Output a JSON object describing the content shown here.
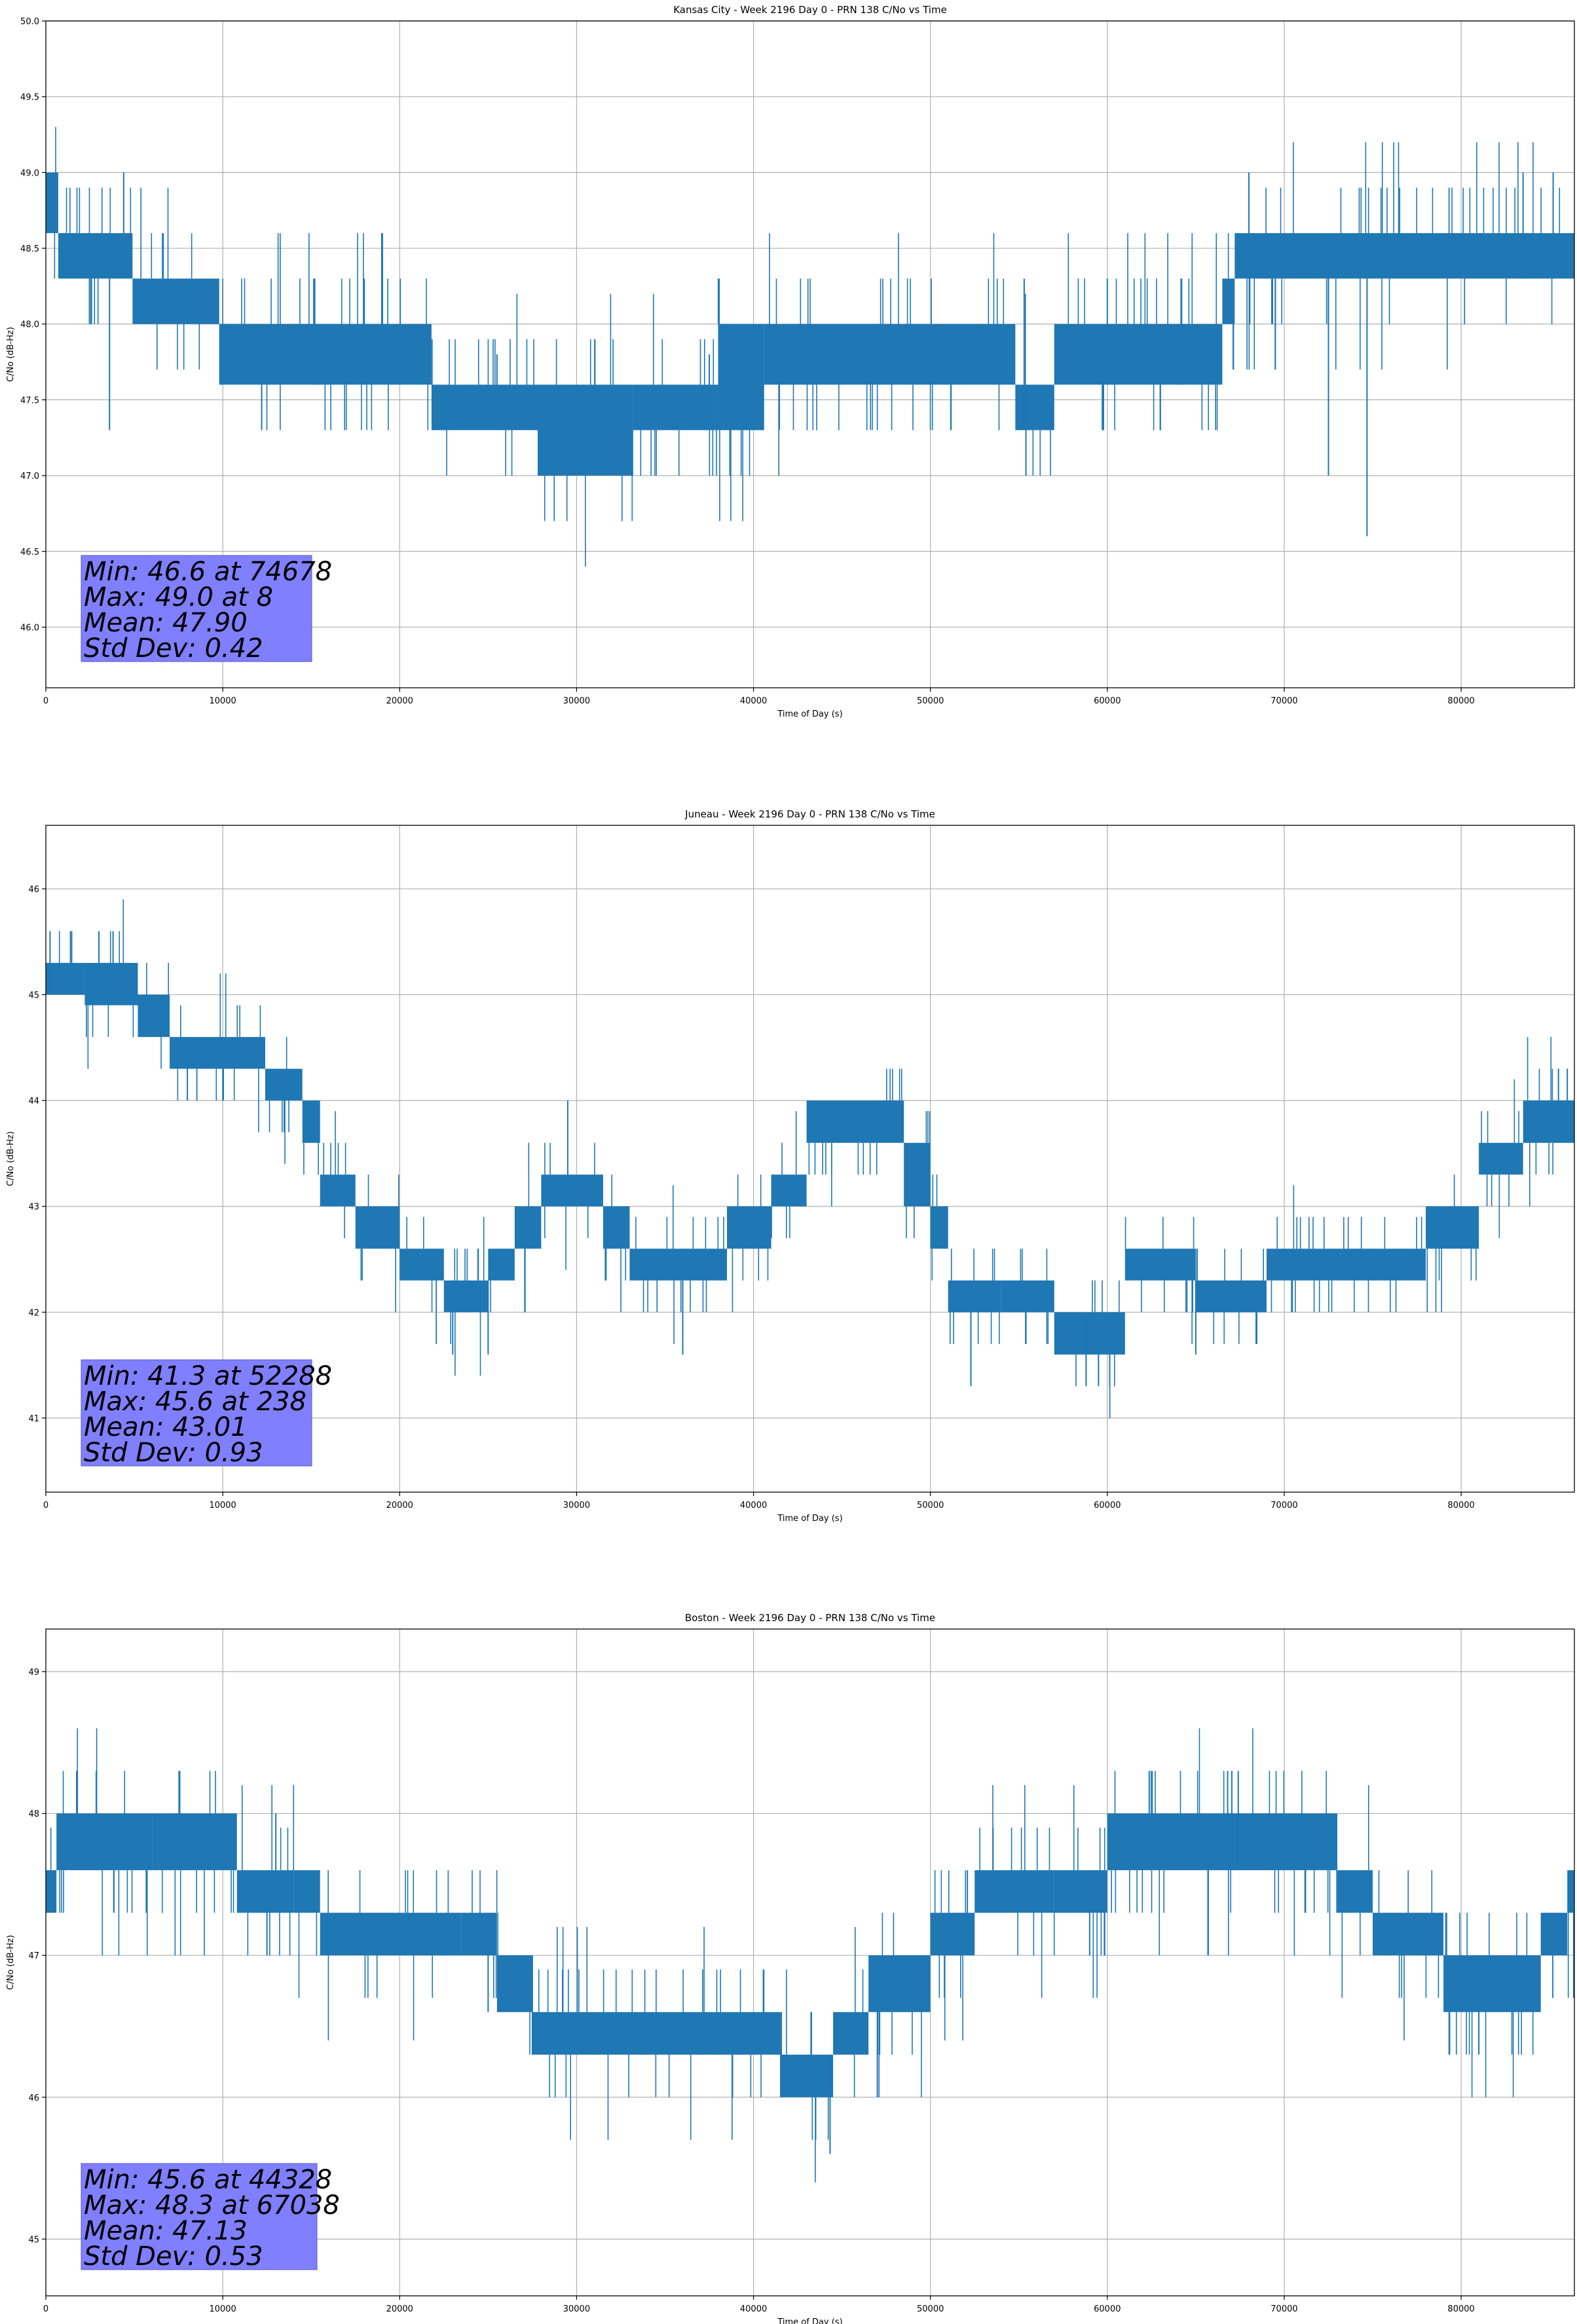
{
  "accent_color": "#1f77b4",
  "stats_box_color": "#7f7fff",
  "chart_data": [
    {
      "type": "line",
      "title": "Kansas City - Week 2196 Day 0 - PRN 138 C/No vs Time",
      "xlabel": "Time of Day (s)",
      "ylabel": "C/No (dB-Hz)",
      "xlim": [
        0,
        86400
      ],
      "ylim": [
        45.6,
        50.0
      ],
      "xticks": [
        0,
        10000,
        20000,
        30000,
        40000,
        50000,
        60000,
        70000,
        80000
      ],
      "yticks": [
        46.0,
        46.5,
        47.0,
        47.5,
        48.0,
        48.5,
        49.0,
        49.5,
        50.0
      ],
      "ytick_labels": [
        "46.0",
        "46.5",
        "47.0",
        "47.5",
        "48.0",
        "48.5",
        "49.0",
        "49.5",
        "50.0"
      ],
      "grid": true,
      "series": [
        {
          "bands": [
            {
              "x0": 0,
              "x1": 700,
              "lo": 48.6,
              "hi": 49.0
            },
            {
              "x0": 700,
              "x1": 4900,
              "lo": 48.3,
              "hi": 48.6
            },
            {
              "x0": 4900,
              "x1": 9800,
              "lo": 48.0,
              "hi": 48.3
            },
            {
              "x0": 9800,
              "x1": 21800,
              "lo": 47.6,
              "hi": 48.0
            },
            {
              "x0": 21800,
              "x1": 27800,
              "lo": 47.3,
              "hi": 47.6
            },
            {
              "x0": 27800,
              "x1": 33200,
              "lo": 47.0,
              "hi": 47.6
            },
            {
              "x0": 33200,
              "x1": 38000,
              "lo": 47.3,
              "hi": 47.6
            },
            {
              "x0": 38000,
              "x1": 40600,
              "lo": 47.3,
              "hi": 48.0
            },
            {
              "x0": 40600,
              "x1": 54800,
              "lo": 47.6,
              "hi": 48.0
            },
            {
              "x0": 54800,
              "x1": 57000,
              "lo": 47.3,
              "hi": 47.6
            },
            {
              "x0": 57000,
              "x1": 66500,
              "lo": 47.6,
              "hi": 48.0
            },
            {
              "x0": 66500,
              "x1": 67200,
              "lo": 48.0,
              "hi": 48.3
            },
            {
              "x0": 67200,
              "x1": 86400,
              "lo": 48.3,
              "hi": 48.6
            }
          ],
          "spikes": [
            {
              "x": 74678,
              "lo": 46.6,
              "hi": 48.3
            },
            {
              "x": 72500,
              "lo": 47.0,
              "hi": 48.3
            },
            {
              "x": 3600,
              "lo": 47.3,
              "hi": 48.3
            },
            {
              "x": 55400,
              "lo": 47.0,
              "hi": 47.6
            },
            {
              "x": 8,
              "lo": 48.6,
              "hi": 49.0
            },
            {
              "x": 4400,
              "lo": 48.6,
              "hi": 49.0
            },
            {
              "x": 68000,
              "lo": 48.3,
              "hi": 49.0
            },
            {
              "x": 83500,
              "lo": 48.3,
              "hi": 49.0
            },
            {
              "x": 85200,
              "lo": 48.3,
              "hi": 49.0
            },
            {
              "x": 15200,
              "lo": 47.6,
              "hi": 48.3
            },
            {
              "x": 18000,
              "lo": 47.6,
              "hi": 48.3
            },
            {
              "x": 55300,
              "lo": 47.6,
              "hi": 48.3
            },
            {
              "x": 64200,
              "lo": 47.6,
              "hi": 48.3
            },
            {
              "x": 60000,
              "lo": 47.6,
              "hi": 48.3
            },
            {
              "x": 25500,
              "lo": 47.3,
              "hi": 47.8
            },
            {
              "x": 37500,
              "lo": 47.3,
              "hi": 47.8
            },
            {
              "x": 63000,
              "lo": 47.3,
              "hi": 47.6
            },
            {
              "x": 12200,
              "lo": 47.3,
              "hi": 47.6
            }
          ]
        }
      ],
      "stats": [
        "Min: 46.6 at 74678",
        "Max: 49.0 at 8",
        "Mean: 47.90",
        "Std Dev: 0.42"
      ]
    },
    {
      "type": "line",
      "title": "Juneau - Week 2196 Day 0 - PRN 138 C/No vs Time",
      "xlabel": "Time of Day (s)",
      "ylabel": "C/No (dB-Hz)",
      "xlim": [
        0,
        86400
      ],
      "ylim": [
        40.3,
        46.6
      ],
      "xticks": [
        0,
        10000,
        20000,
        30000,
        40000,
        50000,
        60000,
        70000,
        80000
      ],
      "yticks": [
        41,
        42,
        43,
        44,
        45,
        46
      ],
      "ytick_labels": [
        "41",
        "42",
        "43",
        "44",
        "45",
        "46"
      ],
      "grid": true,
      "series": [
        {
          "bands": [
            {
              "x0": 0,
              "x1": 2200,
              "lo": 45.0,
              "hi": 45.3
            },
            {
              "x0": 2200,
              "x1": 5200,
              "lo": 44.9,
              "hi": 45.3
            },
            {
              "x0": 5200,
              "x1": 7000,
              "lo": 44.6,
              "hi": 45.0
            },
            {
              "x0": 7000,
              "x1": 12400,
              "lo": 44.3,
              "hi": 44.6
            },
            {
              "x0": 12400,
              "x1": 14500,
              "lo": 44.0,
              "hi": 44.3
            },
            {
              "x0": 14500,
              "x1": 15500,
              "lo": 43.6,
              "hi": 44.0
            },
            {
              "x0": 15500,
              "x1": 17500,
              "lo": 43.0,
              "hi": 43.3
            },
            {
              "x0": 17500,
              "x1": 20000,
              "lo": 42.6,
              "hi": 43.0
            },
            {
              "x0": 20000,
              "x1": 22500,
              "lo": 42.3,
              "hi": 42.6
            },
            {
              "x0": 22500,
              "x1": 25000,
              "lo": 42.0,
              "hi": 42.3
            },
            {
              "x0": 25000,
              "x1": 26500,
              "lo": 42.3,
              "hi": 42.6
            },
            {
              "x0": 26500,
              "x1": 28000,
              "lo": 42.6,
              "hi": 43.0
            },
            {
              "x0": 28000,
              "x1": 31500,
              "lo": 43.0,
              "hi": 43.3
            },
            {
              "x0": 31500,
              "x1": 33000,
              "lo": 42.6,
              "hi": 43.0
            },
            {
              "x0": 33000,
              "x1": 38500,
              "lo": 42.3,
              "hi": 42.6
            },
            {
              "x0": 38500,
              "x1": 41000,
              "lo": 42.6,
              "hi": 43.0
            },
            {
              "x0": 41000,
              "x1": 43000,
              "lo": 43.0,
              "hi": 43.3
            },
            {
              "x0": 43000,
              "x1": 48500,
              "lo": 43.6,
              "hi": 44.0
            },
            {
              "x0": 48500,
              "x1": 50000,
              "lo": 43.0,
              "hi": 43.6
            },
            {
              "x0": 50000,
              "x1": 51000,
              "lo": 42.6,
              "hi": 43.0
            },
            {
              "x0": 51000,
              "x1": 54000,
              "lo": 42.0,
              "hi": 42.3
            },
            {
              "x0": 54000,
              "x1": 57000,
              "lo": 42.0,
              "hi": 42.3
            },
            {
              "x0": 57000,
              "x1": 61000,
              "lo": 41.6,
              "hi": 42.0
            },
            {
              "x0": 61000,
              "x1": 65000,
              "lo": 42.3,
              "hi": 42.6
            },
            {
              "x0": 65000,
              "x1": 69000,
              "lo": 42.0,
              "hi": 42.3
            },
            {
              "x0": 69000,
              "x1": 78000,
              "lo": 42.3,
              "hi": 42.6
            },
            {
              "x0": 78000,
              "x1": 81000,
              "lo": 42.6,
              "hi": 43.0
            },
            {
              "x0": 81000,
              "x1": 83500,
              "lo": 43.3,
              "hi": 43.6
            },
            {
              "x0": 83500,
              "x1": 86400,
              "lo": 43.6,
              "hi": 44.0
            }
          ],
          "spikes": [
            {
              "x": 238,
              "lo": 45.0,
              "hi": 45.6
            },
            {
              "x": 3000,
              "lo": 45.0,
              "hi": 45.6
            },
            {
              "x": 3800,
              "lo": 45.0,
              "hi": 45.6
            },
            {
              "x": 52288,
              "lo": 41.3,
              "hi": 42.3
            },
            {
              "x": 58800,
              "lo": 41.3,
              "hi": 42.0
            },
            {
              "x": 59500,
              "lo": 41.3,
              "hi": 42.0
            },
            {
              "x": 36000,
              "lo": 41.6,
              "hi": 42.3
            },
            {
              "x": 29500,
              "lo": 43.0,
              "hi": 44.0
            },
            {
              "x": 44500,
              "lo": 43.6,
              "hi": 44.0
            },
            {
              "x": 65000,
              "lo": 41.6,
              "hi": 42.3
            },
            {
              "x": 86000,
              "lo": 43.6,
              "hi": 44.3
            },
            {
              "x": 85500,
              "lo": 43.6,
              "hi": 44.3
            },
            {
              "x": 8000,
              "lo": 44.0,
              "hi": 44.6
            },
            {
              "x": 23000,
              "lo": 41.6,
              "hi": 42.3
            },
            {
              "x": 25000,
              "lo": 41.6,
              "hi": 42.3
            }
          ]
        }
      ],
      "stats": [
        "Min: 41.3 at 52288",
        "Max: 45.6 at 238",
        "Mean: 43.01",
        "Std Dev: 0.93"
      ]
    },
    {
      "type": "line",
      "title": "Boston - Week 2196 Day 0 - PRN 138 C/No vs Time",
      "xlabel": "Time of Day (s)",
      "ylabel": "C/No (dB-Hz)",
      "xlim": [
        0,
        86400
      ],
      "ylim": [
        44.6,
        49.3
      ],
      "xticks": [
        0,
        10000,
        20000,
        30000,
        40000,
        50000,
        60000,
        70000,
        80000
      ],
      "yticks": [
        45,
        46,
        47,
        48,
        49
      ],
      "ytick_labels": [
        "45",
        "46",
        "47",
        "48",
        "49"
      ],
      "grid": true,
      "series": [
        {
          "bands": [
            {
              "x0": 0,
              "x1": 600,
              "lo": 47.3,
              "hi": 47.6
            },
            {
              "x0": 600,
              "x1": 6000,
              "lo": 47.6,
              "hi": 48.0
            },
            {
              "x0": 6000,
              "x1": 10800,
              "lo": 47.6,
              "hi": 48.0
            },
            {
              "x0": 10800,
              "x1": 14000,
              "lo": 47.3,
              "hi": 47.6
            },
            {
              "x0": 14000,
              "x1": 15500,
              "lo": 47.3,
              "hi": 47.6
            },
            {
              "x0": 15500,
              "x1": 23500,
              "lo": 47.0,
              "hi": 47.3
            },
            {
              "x0": 23500,
              "x1": 25500,
              "lo": 47.0,
              "hi": 47.3
            },
            {
              "x0": 25500,
              "x1": 27500,
              "lo": 46.6,
              "hi": 47.0
            },
            {
              "x0": 27500,
              "x1": 41500,
              "lo": 46.3,
              "hi": 46.6
            },
            {
              "x0": 41500,
              "x1": 44500,
              "lo": 46.0,
              "hi": 46.3
            },
            {
              "x0": 44500,
              "x1": 46500,
              "lo": 46.3,
              "hi": 46.6
            },
            {
              "x0": 46500,
              "x1": 50000,
              "lo": 46.6,
              "hi": 47.0
            },
            {
              "x0": 50000,
              "x1": 52500,
              "lo": 47.0,
              "hi": 47.3
            },
            {
              "x0": 52500,
              "x1": 57000,
              "lo": 47.3,
              "hi": 47.6
            },
            {
              "x0": 57000,
              "x1": 60000,
              "lo": 47.3,
              "hi": 47.6
            },
            {
              "x0": 60000,
              "x1": 73000,
              "lo": 47.6,
              "hi": 48.0
            },
            {
              "x0": 73000,
              "x1": 75000,
              "lo": 47.3,
              "hi": 47.6
            },
            {
              "x0": 75000,
              "x1": 79000,
              "lo": 47.0,
              "hi": 47.3
            },
            {
              "x0": 79000,
              "x1": 84500,
              "lo": 46.6,
              "hi": 47.0
            },
            {
              "x0": 84500,
              "x1": 86000,
              "lo": 47.0,
              "hi": 47.3
            },
            {
              "x0": 86000,
              "x1": 86400,
              "lo": 47.3,
              "hi": 47.6
            }
          ],
          "spikes": [
            {
              "x": 44328,
              "lo": 45.6,
              "hi": 46.3
            },
            {
              "x": 67038,
              "lo": 47.6,
              "hi": 48.3
            },
            {
              "x": 67400,
              "lo": 47.6,
              "hi": 48.3
            },
            {
              "x": 66800,
              "lo": 47.6,
              "hi": 48.3
            },
            {
              "x": 81000,
              "lo": 46.3,
              "hi": 47.0
            },
            {
              "x": 12500,
              "lo": 47.0,
              "hi": 47.6
            },
            {
              "x": 13000,
              "lo": 47.6,
              "hi": 48.0
            },
            {
              "x": 59000,
              "lo": 47.0,
              "hi": 47.6
            },
            {
              "x": 27500,
              "lo": 46.3,
              "hi": 47.0
            },
            {
              "x": 47000,
              "lo": 46.0,
              "hi": 46.6
            },
            {
              "x": 25000,
              "lo": 46.6,
              "hi": 47.3
            }
          ]
        }
      ],
      "stats": [
        "Min: 45.6 at 44328",
        "Max: 48.3 at 67038",
        "Mean: 47.13",
        "Std Dev: 0.53"
      ]
    }
  ]
}
